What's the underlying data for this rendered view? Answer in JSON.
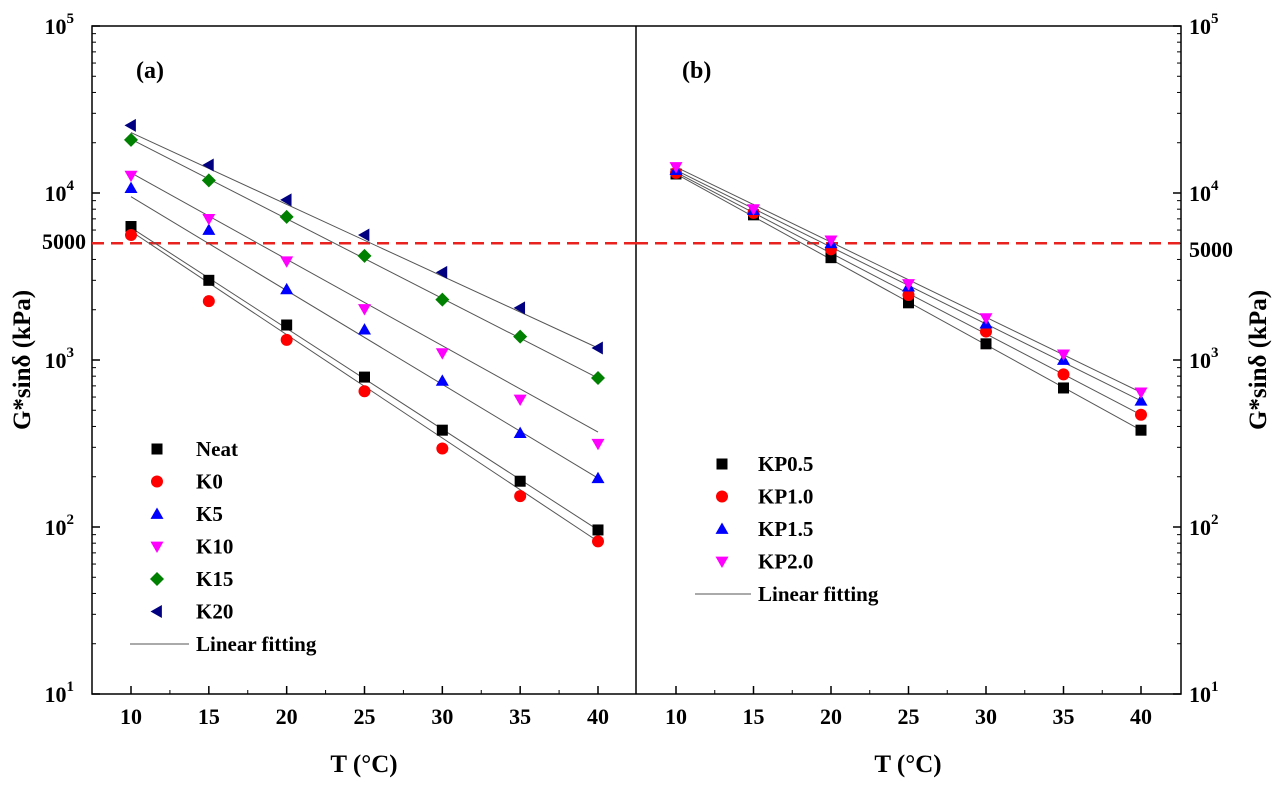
{
  "figure": {
    "y_axis_label_left": "G*sinδ (kPa)",
    "y_axis_label_right": "G*sinδ (kPa)",
    "x_axis_label_left": "T (°C)",
    "x_axis_label_right": "T (°C)",
    "y_tick_labels": [
      {
        "base": "10",
        "exp": "1"
      },
      {
        "base": "10",
        "exp": "2"
      },
      {
        "base": "10",
        "exp": "3"
      },
      {
        "base": "10",
        "exp": "4"
      },
      {
        "base": "10",
        "exp": "5"
      }
    ],
    "reference_label_left": "5000",
    "reference_label_right": "5000",
    "reference_color": "#e8231f"
  },
  "chart_data": [
    {
      "type": "scatter",
      "panel_label": "(a)",
      "x": [
        10,
        15,
        20,
        25,
        30,
        35,
        40
      ],
      "xticks": [
        "10",
        "15",
        "20",
        "25",
        "30",
        "35",
        "40"
      ],
      "xlabel": "T (°C)",
      "ylabel": "G*sinδ (kPa)",
      "yscale": "log",
      "ylim": [
        10,
        100000
      ],
      "reference_line": {
        "y": 5000,
        "label": "5000",
        "style": "dashed",
        "color": "#e8231f"
      },
      "legend_position": "bottom-left",
      "fit_label": "Linear fitting",
      "series": [
        {
          "name": "Neat",
          "marker": "square",
          "color": "#000000",
          "values": [
            6300,
            3000,
            1620,
            790,
            380,
            188,
            96
          ],
          "fit": [
            6200,
            96
          ]
        },
        {
          "name": "K0",
          "marker": "circle",
          "color": "#ff0000",
          "values": [
            5600,
            2250,
            1320,
            650,
            295,
            153,
            82
          ],
          "fit": [
            5900,
            82
          ]
        },
        {
          "name": "K5",
          "marker": "triangle-up",
          "color": "#0000ff",
          "values": [
            10700,
            6000,
            2650,
            1520,
            750,
            365,
            196
          ],
          "fit": [
            9500,
            196
          ]
        },
        {
          "name": "K10",
          "marker": "triangle-down",
          "color": "#ff00ff",
          "values": [
            12700,
            7000,
            3900,
            2020,
            1100,
            580,
            315
          ],
          "fit": [
            13200,
            370
          ]
        },
        {
          "name": "K15",
          "marker": "diamond",
          "color": "#008000",
          "values": [
            20800,
            11900,
            7200,
            4200,
            2300,
            1380,
            780
          ],
          "fit": [
            21000,
            780
          ]
        },
        {
          "name": "K20",
          "marker": "triangle-left",
          "color": "#000080",
          "values": [
            25400,
            14700,
            9100,
            5600,
            3350,
            2050,
            1180
          ],
          "fit": [
            23000,
            1180
          ]
        }
      ]
    },
    {
      "type": "scatter",
      "panel_label": "(b)",
      "x": [
        10,
        15,
        20,
        25,
        30,
        35,
        40
      ],
      "xticks": [
        "10",
        "15",
        "20",
        "25",
        "30",
        "35",
        "40"
      ],
      "xlabel": "T (°C)",
      "ylabel": "G*sinδ (kPa)",
      "yscale": "log",
      "ylim": [
        10,
        100000
      ],
      "reference_line": {
        "y": 5000,
        "label": "5000",
        "style": "dashed",
        "color": "#e8231f"
      },
      "legend_position": "bottom-left",
      "fit_label": "Linear fitting",
      "series": [
        {
          "name": "KP0.5",
          "marker": "square",
          "color": "#000000",
          "values": [
            13000,
            7400,
            4100,
            2200,
            1250,
            680,
            380
          ],
          "fit": [
            13000,
            380
          ]
        },
        {
          "name": "KP1.0",
          "marker": "circle",
          "color": "#ff0000",
          "values": [
            13200,
            7600,
            4600,
            2450,
            1480,
            820,
            470
          ],
          "fit": [
            13300,
            470
          ]
        },
        {
          "name": "KP1.5",
          "marker": "triangle-up",
          "color": "#0000ff",
          "values": [
            13700,
            7900,
            5000,
            2750,
            1650,
            1000,
            570
          ],
          "fit": [
            13700,
            570
          ]
        },
        {
          "name": "KP2.0",
          "marker": "triangle-down",
          "color": "#ff00ff",
          "values": [
            14300,
            8000,
            5200,
            2850,
            1780,
            1080,
            640
          ],
          "fit": [
            14300,
            640
          ]
        }
      ]
    }
  ]
}
